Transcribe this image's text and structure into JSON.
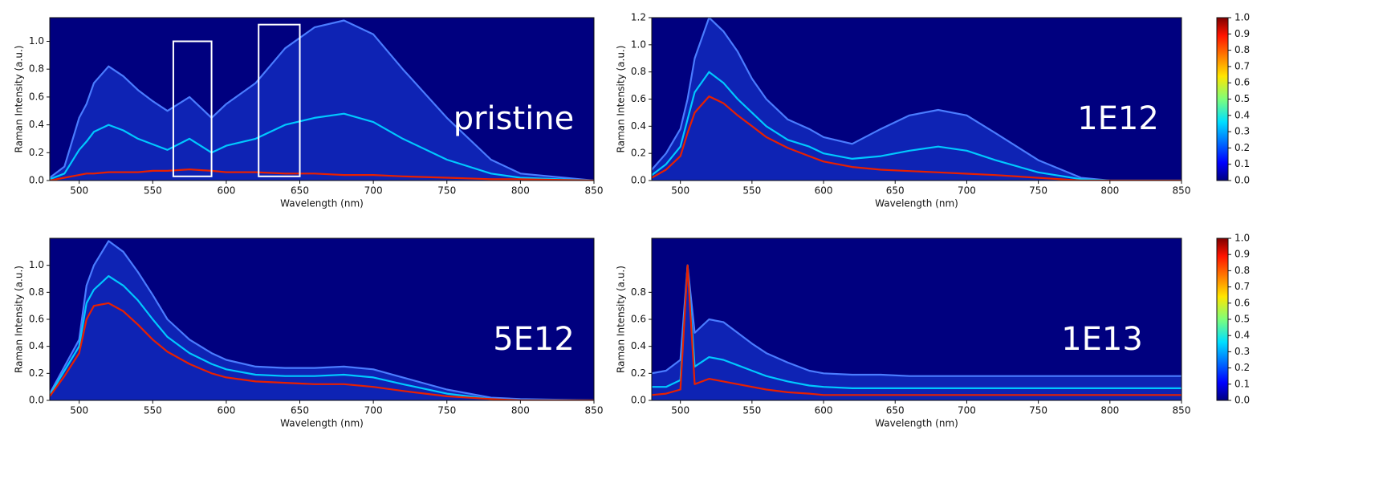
{
  "chart_data": [
    {
      "type": "line",
      "annotation": "pristine",
      "xlabel": "Wavelength (nm)",
      "ylabel": "Raman Intensity (a.u.)",
      "background": "#00007f",
      "x": [
        480,
        490,
        500,
        505,
        510,
        520,
        530,
        540,
        550,
        560,
        575,
        590,
        600,
        620,
        640,
        660,
        680,
        700,
        720,
        750,
        780,
        800,
        850
      ],
      "series": [
        {
          "color": "#4a7cff",
          "values": [
            0.02,
            0.1,
            0.45,
            0.55,
            0.7,
            0.82,
            0.75,
            0.65,
            0.57,
            0.5,
            0.6,
            0.45,
            0.55,
            0.7,
            0.95,
            1.1,
            1.15,
            1.05,
            0.8,
            0.45,
            0.15,
            0.05,
            0
          ]
        },
        {
          "color": "#00c8ff",
          "values": [
            0.01,
            0.05,
            0.22,
            0.28,
            0.35,
            0.4,
            0.36,
            0.3,
            0.26,
            0.22,
            0.3,
            0.2,
            0.25,
            0.3,
            0.4,
            0.45,
            0.48,
            0.42,
            0.3,
            0.15,
            0.05,
            0.02,
            0
          ]
        },
        {
          "color": "#e82000",
          "values": [
            0,
            0.02,
            0.04,
            0.05,
            0.05,
            0.06,
            0.06,
            0.06,
            0.07,
            0.07,
            0.08,
            0.07,
            0.06,
            0.06,
            0.05,
            0.05,
            0.04,
            0.04,
            0.03,
            0.02,
            0.01,
            0.01,
            0
          ]
        }
      ],
      "highlights": [
        {
          "xlim": [
            564,
            590
          ],
          "ylim": [
            0.03,
            1.0
          ]
        },
        {
          "xlim": [
            622,
            650
          ],
          "ylim": [
            0.03,
            1.12
          ]
        }
      ],
      "highlight_color": "#ffffff",
      "xlim": [
        480,
        850
      ],
      "ylim": [
        0,
        1.17
      ],
      "xticks": [
        500,
        550,
        600,
        650,
        700,
        750,
        800,
        850
      ],
      "yticks": [
        {
          "value": 0,
          "label": "0.0"
        },
        {
          "value": 0.2,
          "label": "0.2"
        },
        {
          "value": 0.4,
          "label": "0.4"
        },
        {
          "value": 0.6,
          "label": "0.6"
        },
        {
          "value": 0.8,
          "label": "0.8"
        },
        {
          "value": 1,
          "label": "1.0"
        }
      ]
    },
    {
      "type": "line",
      "annotation": "1E12",
      "xlabel": "Wavelength (nm)",
      "ylabel": "Raman Intensity (a.u.)",
      "background": "#00007f",
      "x": [
        480,
        490,
        500,
        505,
        510,
        520,
        530,
        540,
        550,
        560,
        575,
        590,
        600,
        620,
        640,
        660,
        680,
        700,
        720,
        750,
        780,
        800,
        850
      ],
      "series": [
        {
          "color": "#4a7cff",
          "values": [
            0.08,
            0.2,
            0.38,
            0.6,
            0.9,
            1.2,
            1.1,
            0.95,
            0.75,
            0.6,
            0.45,
            0.38,
            0.32,
            0.27,
            0.38,
            0.48,
            0.52,
            0.48,
            0.35,
            0.15,
            0.02,
            0,
            0
          ]
        },
        {
          "color": "#00c8ff",
          "values": [
            0.04,
            0.12,
            0.25,
            0.45,
            0.65,
            0.8,
            0.72,
            0.6,
            0.5,
            0.4,
            0.3,
            0.25,
            0.2,
            0.16,
            0.18,
            0.22,
            0.25,
            0.22,
            0.15,
            0.06,
            0.01,
            0,
            0
          ]
        },
        {
          "color": "#e82000",
          "values": [
            0.02,
            0.08,
            0.18,
            0.35,
            0.5,
            0.62,
            0.57,
            0.48,
            0.4,
            0.32,
            0.24,
            0.18,
            0.14,
            0.1,
            0.08,
            0.07,
            0.06,
            0.05,
            0.04,
            0.02,
            0,
            0,
            0
          ]
        }
      ],
      "xlim": [
        480,
        850
      ],
      "ylim": [
        0,
        1.2
      ],
      "xticks": [
        500,
        550,
        600,
        650,
        700,
        750,
        800,
        850
      ],
      "yticks": [
        {
          "value": 0,
          "label": "0.0"
        },
        {
          "value": 0.2,
          "label": "0.2"
        },
        {
          "value": 0.4,
          "label": "0.4"
        },
        {
          "value": 0.6,
          "label": "0.6"
        },
        {
          "value": 0.8,
          "label": "0.8"
        },
        {
          "value": 1,
          "label": "1.0"
        },
        {
          "value": 1.2,
          "label": "1.2"
        }
      ],
      "colorbar": {
        "colormap": "jet",
        "lim": [
          0,
          1
        ],
        "ticks": [
          {
            "value": 0,
            "label": "0.0"
          },
          {
            "value": 0.1,
            "label": "0.1"
          },
          {
            "value": 0.2,
            "label": "0.2"
          },
          {
            "value": 0.3,
            "label": "0.3"
          },
          {
            "value": 0.4,
            "label": "0.4"
          },
          {
            "value": 0.5,
            "label": "0.5"
          },
          {
            "value": 0.6,
            "label": "0.6"
          },
          {
            "value": 0.7,
            "label": "0.7"
          },
          {
            "value": 0.8,
            "label": "0.8"
          },
          {
            "value": 0.9,
            "label": "0.9"
          },
          {
            "value": 1,
            "label": "1.0"
          }
        ]
      }
    },
    {
      "type": "line",
      "annotation": "5E12",
      "xlabel": "Wavelength (nm)",
      "ylabel": "Raman Intensity (a.u.)",
      "background": "#00007f",
      "x": [
        480,
        490,
        500,
        505,
        510,
        520,
        530,
        540,
        550,
        560,
        575,
        590,
        600,
        620,
        640,
        660,
        680,
        700,
        720,
        750,
        780,
        800,
        850
      ],
      "series": [
        {
          "color": "#4a7cff",
          "values": [
            0.05,
            0.25,
            0.45,
            0.85,
            1.0,
            1.18,
            1.1,
            0.95,
            0.78,
            0.6,
            0.45,
            0.35,
            0.3,
            0.25,
            0.24,
            0.24,
            0.25,
            0.23,
            0.17,
            0.08,
            0.02,
            0.01,
            0
          ]
        },
        {
          "color": "#00c8ff",
          "values": [
            0.04,
            0.22,
            0.4,
            0.72,
            0.82,
            0.92,
            0.85,
            0.74,
            0.6,
            0.47,
            0.35,
            0.27,
            0.23,
            0.19,
            0.18,
            0.18,
            0.19,
            0.17,
            0.12,
            0.05,
            0.01,
            0,
            0
          ]
        },
        {
          "color": "#e82000",
          "values": [
            0.03,
            0.18,
            0.35,
            0.6,
            0.7,
            0.72,
            0.66,
            0.56,
            0.45,
            0.36,
            0.27,
            0.2,
            0.17,
            0.14,
            0.13,
            0.12,
            0.12,
            0.1,
            0.07,
            0.03,
            0.01,
            0,
            0
          ]
        }
      ],
      "xlim": [
        480,
        850
      ],
      "ylim": [
        0,
        1.2
      ],
      "xticks": [
        500,
        550,
        600,
        650,
        700,
        750,
        800,
        850
      ],
      "yticks": [
        {
          "value": 0,
          "label": "0.0"
        },
        {
          "value": 0.2,
          "label": "0.2"
        },
        {
          "value": 0.4,
          "label": "0.4"
        },
        {
          "value": 0.6,
          "label": "0.6"
        },
        {
          "value": 0.8,
          "label": "0.8"
        },
        {
          "value": 1,
          "label": "1.0"
        }
      ]
    },
    {
      "type": "line",
      "annotation": "1E13",
      "xlabel": "Wavelength (nm)",
      "ylabel": "Raman Intensity (a.u.)",
      "background": "#00007f",
      "x": [
        480,
        490,
        500,
        505,
        510,
        520,
        530,
        540,
        550,
        560,
        575,
        590,
        600,
        620,
        640,
        660,
        680,
        700,
        720,
        750,
        780,
        800,
        850
      ],
      "series": [
        {
          "color": "#4a7cff",
          "values": [
            0.2,
            0.22,
            0.3,
            1.0,
            0.5,
            0.6,
            0.58,
            0.5,
            0.42,
            0.35,
            0.28,
            0.22,
            0.2,
            0.19,
            0.19,
            0.18,
            0.18,
            0.18,
            0.18,
            0.18,
            0.18,
            0.18,
            0.18
          ]
        },
        {
          "color": "#00c8ff",
          "values": [
            0.1,
            0.1,
            0.15,
            1.0,
            0.25,
            0.32,
            0.3,
            0.26,
            0.22,
            0.18,
            0.14,
            0.11,
            0.1,
            0.09,
            0.09,
            0.09,
            0.09,
            0.09,
            0.09,
            0.09,
            0.09,
            0.09,
            0.09
          ]
        },
        {
          "color": "#e82000",
          "values": [
            0.04,
            0.05,
            0.08,
            1.0,
            0.12,
            0.16,
            0.14,
            0.12,
            0.1,
            0.08,
            0.06,
            0.05,
            0.04,
            0.04,
            0.04,
            0.04,
            0.04,
            0.04,
            0.04,
            0.04,
            0.04,
            0.04,
            0.04
          ]
        }
      ],
      "xlim": [
        480,
        850
      ],
      "ylim": [
        0,
        1.2
      ],
      "xticks": [
        500,
        550,
        600,
        650,
        700,
        750,
        800,
        850
      ],
      "yticks": [
        {
          "value": 0,
          "label": "0.0"
        },
        {
          "value": 0.2,
          "label": "0.2"
        },
        {
          "value": 0.4,
          "label": "0.4"
        },
        {
          "value": 0.6,
          "label": "0.6"
        },
        {
          "value": 0.8,
          "label": "0.8"
        }
      ],
      "colorbar": {
        "colormap": "jet",
        "lim": [
          0,
          1
        ],
        "ticks": [
          {
            "value": 0,
            "label": "0.0"
          },
          {
            "value": 0.1,
            "label": "0.1"
          },
          {
            "value": 0.2,
            "label": "0.2"
          },
          {
            "value": 0.3,
            "label": "0.3"
          },
          {
            "value": 0.4,
            "label": "0.4"
          },
          {
            "value": 0.5,
            "label": "0.5"
          },
          {
            "value": 0.6,
            "label": "0.6"
          },
          {
            "value": 0.7,
            "label": "0.7"
          },
          {
            "value": 0.8,
            "label": "0.8"
          },
          {
            "value": 0.9,
            "label": "0.9"
          },
          {
            "value": 1,
            "label": "1.0"
          }
        ]
      }
    }
  ]
}
